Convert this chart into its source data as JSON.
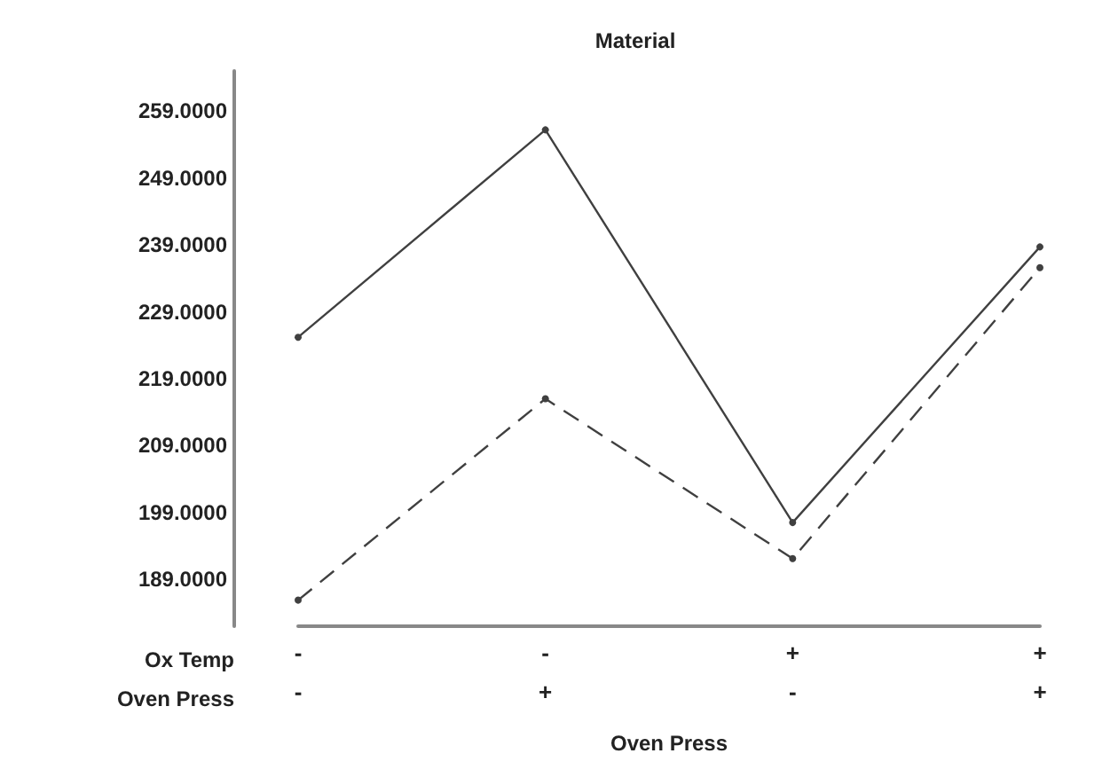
{
  "chart_data": {
    "type": "line",
    "title": "Material",
    "xlabel": "Oven Press",
    "categories": [
      "-\n-",
      "-\n+",
      "+\n-",
      "+\n+"
    ],
    "annotations": [
      "Ox Temp",
      "Oven Press"
    ],
    "series": [
      {
        "color": "#404040",
        "line_style": "solid",
        "values": [
          225.2,
          256.2,
          197.5,
          238.7
        ]
      },
      {
        "color": "#404040",
        "line_style": "dashed",
        "values": [
          185.9,
          216,
          192.1,
          235.6
        ]
      }
    ],
    "ylim": [
      182,
      265
    ],
    "yticks": [
      {
        "value": 189,
        "label": "189.0000"
      },
      {
        "value": 199,
        "label": "199.0000"
      },
      {
        "value": 209,
        "label": "209.0000"
      },
      {
        "value": 219,
        "label": "219.0000"
      },
      {
        "value": 229,
        "label": "229.0000"
      },
      {
        "value": 239,
        "label": "239.0000"
      },
      {
        "value": 249,
        "label": "249.0000"
      },
      {
        "value": 259,
        "label": "259.0000"
      }
    ],
    "grid": false,
    "marker": "circle"
  }
}
